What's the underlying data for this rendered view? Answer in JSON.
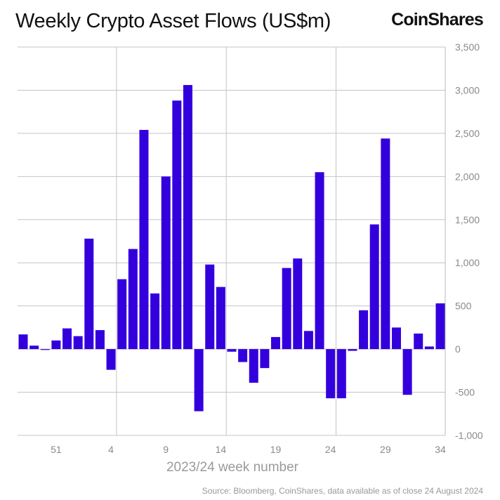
{
  "title": "Weekly Crypto Asset Flows (US$m)",
  "logo_text": "CoinShares",
  "source": "Source: Bloomberg, CoinShares, data available as of close 24 August 2024",
  "chart_data": {
    "type": "bar",
    "title": "Weekly Crypto Asset Flows (US$m)",
    "xlabel": "2023/24 week number",
    "ylabel": "",
    "ylim": [
      -1000,
      3500
    ],
    "yticks": [
      -1000,
      -500,
      0,
      500,
      1000,
      1500,
      2000,
      2500,
      3000,
      3500
    ],
    "ytick_labels": [
      "-1,000",
      "-500",
      "0",
      "500",
      "1,000",
      "1,500",
      "2,000",
      "2,500",
      "3,000",
      "3,500"
    ],
    "y_axis_position": "right",
    "xtick_labels": [
      "51",
      "4",
      "9",
      "14",
      "19",
      "24",
      "29",
      "34"
    ],
    "grid": true,
    "bar_color": "#3300dd",
    "categories": [
      "48",
      "49",
      "50",
      "51",
      "52",
      "1",
      "2",
      "3",
      "4",
      "5",
      "6",
      "7",
      "8",
      "9",
      "10",
      "11",
      "12",
      "13",
      "14",
      "15",
      "16",
      "17",
      "18",
      "19",
      "20",
      "21",
      "22",
      "23",
      "24",
      "25",
      "26",
      "27",
      "28",
      "29",
      "30",
      "31",
      "32",
      "33",
      "34"
    ],
    "values": [
      170,
      40,
      -10,
      100,
      240,
      150,
      1280,
      220,
      -240,
      810,
      1160,
      2540,
      645,
      2000,
      2880,
      3060,
      -720,
      980,
      720,
      -30,
      -150,
      -390,
      -220,
      140,
      940,
      1050,
      210,
      2050,
      -570,
      -570,
      -20,
      450,
      1445,
      2440,
      250,
      -530,
      180,
      30,
      530
    ]
  }
}
